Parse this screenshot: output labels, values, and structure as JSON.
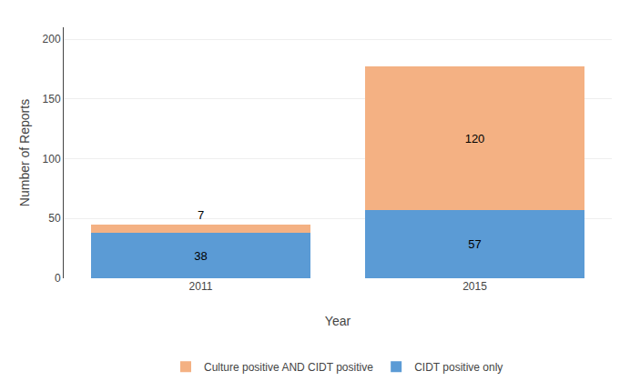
{
  "chart_data": {
    "type": "bar",
    "stacked": true,
    "categories": [
      "2011",
      "2015"
    ],
    "series": [
      {
        "name": "CIDT positive only",
        "color": "#5B9BD5",
        "values": [
          38,
          57
        ]
      },
      {
        "name": "Culture positive AND CIDT positive",
        "color": "#F4B183",
        "values": [
          7,
          120
        ]
      }
    ],
    "xlabel": "Year",
    "ylabel": "Number of Reports",
    "ylim": [
      0,
      210
    ],
    "yticks": [
      0,
      50,
      100,
      150,
      200
    ],
    "grid": true,
    "legend": "bottom",
    "data_labels": true
  }
}
